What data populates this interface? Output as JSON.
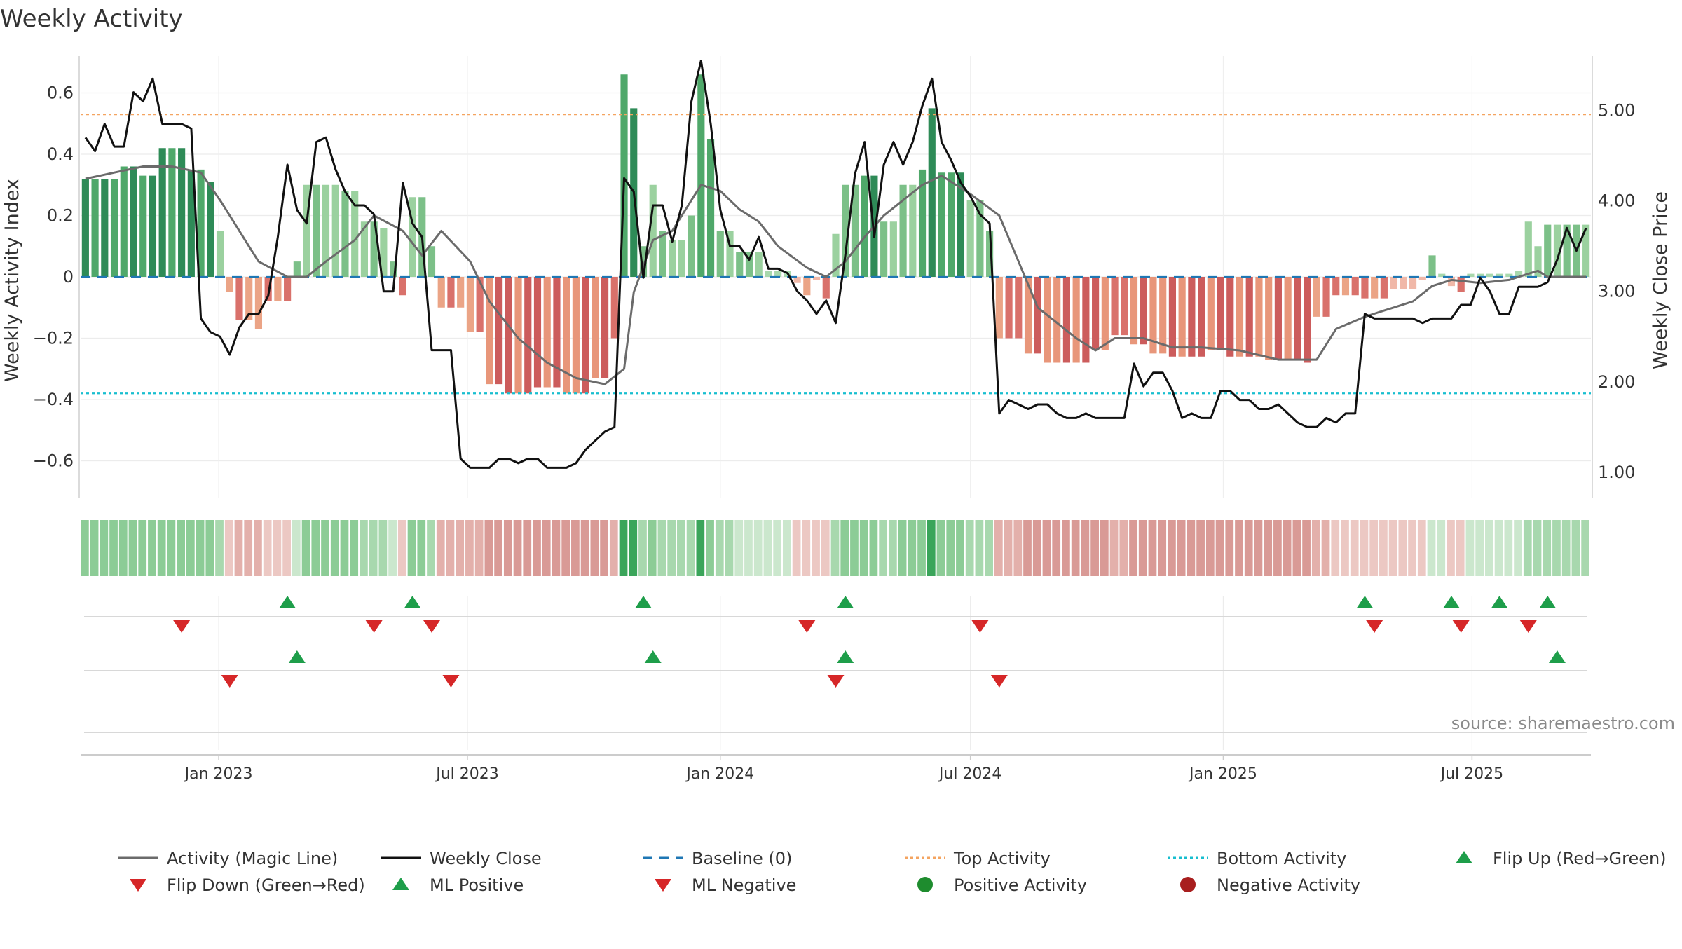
{
  "chart_data": {
    "type": "bar",
    "title": "Weekly Activity",
    "source": "source: sharemaestro.com",
    "left_axis": {
      "label": "Weekly Activity Index",
      "range": [
        -0.72,
        0.72
      ],
      "ticks": [
        0.6,
        0.4,
        0.2,
        0,
        -0.2,
        -0.4,
        -0.6
      ],
      "tick_labels": [
        "0.6",
        "0.4",
        "0.2",
        "0",
        "−0.2",
        "−0.4",
        "−0.6"
      ]
    },
    "right_axis": {
      "label": "Weekly Close Price",
      "range": [
        0.72,
        5.6
      ],
      "ticks": [
        5.0,
        4.0,
        3.0,
        2.0,
        1.0
      ],
      "tick_labels": [
        "5.00",
        "4.00",
        "3.00",
        "2.00",
        "1.00"
      ]
    },
    "x_axis": {
      "start": "2022-09-26",
      "end": "2025-09-22",
      "ticks": [
        "2023-01-01",
        "2023-07-01",
        "2024-01-01",
        "2024-07-01",
        "2025-01-01",
        "2025-07-01"
      ],
      "tick_labels": [
        "Jan 2023",
        "Jul 2023",
        "Jan 2024",
        "Jul 2024",
        "Jan 2025",
        "Jul 2025"
      ]
    },
    "top_activity": 0.53,
    "bottom_activity": -0.38,
    "baseline": 0,
    "activity_segments": [
      [
        0,
        0.32
      ],
      [
        4,
        0.36
      ],
      [
        6,
        0.33
      ],
      [
        8,
        0.42
      ],
      [
        11,
        0.35
      ],
      [
        13,
        0.31
      ],
      [
        14,
        0.15
      ],
      [
        15,
        -0.05
      ],
      [
        16,
        -0.14
      ],
      [
        18,
        -0.17
      ],
      [
        19,
        -0.08
      ],
      [
        22,
        0.05
      ],
      [
        23,
        0.3
      ],
      [
        27,
        0.28
      ],
      [
        29,
        0.18
      ],
      [
        31,
        0.16
      ],
      [
        32,
        0.05
      ],
      [
        33,
        -0.06
      ],
      [
        34,
        0.26
      ],
      [
        36,
        0.1
      ],
      [
        37,
        -0.1
      ],
      [
        40,
        -0.18
      ],
      [
        42,
        -0.35
      ],
      [
        44,
        -0.38
      ],
      [
        47,
        -0.36
      ],
      [
        50,
        -0.38
      ],
      [
        53,
        -0.33
      ],
      [
        55,
        -0.2
      ],
      [
        56,
        0.66
      ],
      [
        57,
        0.55
      ],
      [
        58,
        0.1
      ],
      [
        59,
        0.3
      ],
      [
        60,
        0.15
      ],
      [
        61,
        0.12
      ],
      [
        63,
        0.2
      ],
      [
        64,
        0.66
      ],
      [
        65,
        0.45
      ],
      [
        66,
        0.15
      ],
      [
        68,
        0.08
      ],
      [
        71,
        0.02
      ],
      [
        74,
        -0.02
      ],
      [
        75,
        -0.06
      ],
      [
        76,
        -0.01
      ],
      [
        77,
        -0.07
      ],
      [
        78,
        0.14
      ],
      [
        79,
        0.3
      ],
      [
        81,
        0.33
      ],
      [
        83,
        0.18
      ],
      [
        85,
        0.3
      ],
      [
        87,
        0.35
      ],
      [
        88,
        0.55
      ],
      [
        89,
        0.34
      ],
      [
        92,
        0.25
      ],
      [
        94,
        0.15
      ],
      [
        95,
        -0.2
      ],
      [
        98,
        -0.25
      ],
      [
        100,
        -0.28
      ],
      [
        103,
        -0.28
      ],
      [
        105,
        -0.24
      ],
      [
        107,
        -0.19
      ],
      [
        109,
        -0.22
      ],
      [
        111,
        -0.25
      ],
      [
        113,
        -0.26
      ],
      [
        115,
        -0.26
      ],
      [
        117,
        -0.24
      ],
      [
        119,
        -0.26
      ],
      [
        123,
        -0.27
      ],
      [
        127,
        -0.28
      ],
      [
        128,
        -0.13
      ],
      [
        130,
        -0.06
      ],
      [
        133,
        -0.07
      ],
      [
        136,
        -0.04
      ],
      [
        139,
        -0.01
      ],
      [
        140,
        0.07
      ],
      [
        141,
        0.01
      ],
      [
        142,
        -0.03
      ],
      [
        143,
        -0.05
      ],
      [
        144,
        0.01
      ],
      [
        146,
        0.01
      ],
      [
        149,
        0.02
      ],
      [
        150,
        0.18
      ],
      [
        151,
        0.1
      ],
      [
        152,
        0.17
      ]
    ],
    "magic_line_segments": [
      [
        0,
        0.32
      ],
      [
        3,
        0.34
      ],
      [
        6,
        0.36
      ],
      [
        9,
        0.36
      ],
      [
        12,
        0.34
      ],
      [
        14,
        0.25
      ],
      [
        16,
        0.15
      ],
      [
        18,
        0.05
      ],
      [
        21,
        0.0
      ],
      [
        23,
        0.0
      ],
      [
        25,
        0.05
      ],
      [
        28,
        0.12
      ],
      [
        30,
        0.2
      ],
      [
        33,
        0.15
      ],
      [
        35,
        0.07
      ],
      [
        37,
        0.15
      ],
      [
        40,
        0.05
      ],
      [
        42,
        -0.08
      ],
      [
        45,
        -0.2
      ],
      [
        48,
        -0.28
      ],
      [
        51,
        -0.33
      ],
      [
        54,
        -0.35
      ],
      [
        56,
        -0.3
      ],
      [
        57,
        -0.05
      ],
      [
        59,
        0.12
      ],
      [
        61,
        0.15
      ],
      [
        63,
        0.25
      ],
      [
        64,
        0.3
      ],
      [
        66,
        0.28
      ],
      [
        68,
        0.22
      ],
      [
        70,
        0.18
      ],
      [
        72,
        0.1
      ],
      [
        75,
        0.03
      ],
      [
        77,
        0.0
      ],
      [
        79,
        0.05
      ],
      [
        81,
        0.13
      ],
      [
        83,
        0.2
      ],
      [
        85,
        0.25
      ],
      [
        87,
        0.3
      ],
      [
        89,
        0.33
      ],
      [
        92,
        0.27
      ],
      [
        95,
        0.2
      ],
      [
        97,
        0.05
      ],
      [
        99,
        -0.1
      ],
      [
        101,
        -0.15
      ],
      [
        103,
        -0.2
      ],
      [
        105,
        -0.24
      ],
      [
        107,
        -0.2
      ],
      [
        110,
        -0.2
      ],
      [
        113,
        -0.23
      ],
      [
        116,
        -0.23
      ],
      [
        120,
        -0.24
      ],
      [
        124,
        -0.27
      ],
      [
        128,
        -0.27
      ],
      [
        130,
        -0.17
      ],
      [
        133,
        -0.13
      ],
      [
        136,
        -0.1
      ],
      [
        138,
        -0.08
      ],
      [
        140,
        -0.03
      ],
      [
        142,
        -0.01
      ],
      [
        145,
        -0.02
      ],
      [
        148,
        -0.01
      ],
      [
        151,
        0.02
      ],
      [
        152,
        0.0
      ]
    ],
    "weekly_close_segments": [
      [
        0,
        4.7
      ],
      [
        1,
        4.55
      ],
      [
        2,
        4.85
      ],
      [
        3,
        4.6
      ],
      [
        4,
        4.6
      ],
      [
        5,
        5.2
      ],
      [
        6,
        5.1
      ],
      [
        7,
        5.35
      ],
      [
        8,
        4.85
      ],
      [
        10,
        4.85
      ],
      [
        11,
        4.8
      ],
      [
        12,
        2.7
      ],
      [
        13,
        2.55
      ],
      [
        14,
        2.5
      ],
      [
        15,
        2.3
      ],
      [
        16,
        2.6
      ],
      [
        17,
        2.75
      ],
      [
        18,
        2.75
      ],
      [
        19,
        2.95
      ],
      [
        20,
        3.6
      ],
      [
        21,
        4.4
      ],
      [
        22,
        3.9
      ],
      [
        23,
        3.75
      ],
      [
        24,
        4.65
      ],
      [
        25,
        4.7
      ],
      [
        26,
        4.35
      ],
      [
        27,
        4.1
      ],
      [
        28,
        3.95
      ],
      [
        29,
        3.95
      ],
      [
        30,
        3.85
      ],
      [
        31,
        3.0
      ],
      [
        32,
        3.0
      ],
      [
        33,
        4.2
      ],
      [
        34,
        3.75
      ],
      [
        35,
        3.6
      ],
      [
        36,
        2.35
      ],
      [
        38,
        2.35
      ],
      [
        39,
        1.15
      ],
      [
        40,
        1.05
      ],
      [
        42,
        1.05
      ],
      [
        43,
        1.15
      ],
      [
        44,
        1.15
      ],
      [
        45,
        1.1
      ],
      [
        46,
        1.15
      ],
      [
        47,
        1.15
      ],
      [
        48,
        1.05
      ],
      [
        50,
        1.05
      ],
      [
        51,
        1.1
      ],
      [
        52,
        1.25
      ],
      [
        54,
        1.45
      ],
      [
        55,
        1.5
      ],
      [
        56,
        4.25
      ],
      [
        57,
        4.1
      ],
      [
        58,
        3.15
      ],
      [
        59,
        3.95
      ],
      [
        60,
        3.95
      ],
      [
        61,
        3.55
      ],
      [
        62,
        3.95
      ],
      [
        63,
        5.1
      ],
      [
        64,
        5.55
      ],
      [
        65,
        4.85
      ],
      [
        66,
        3.9
      ],
      [
        67,
        3.5
      ],
      [
        68,
        3.5
      ],
      [
        69,
        3.35
      ],
      [
        70,
        3.6
      ],
      [
        71,
        3.25
      ],
      [
        72,
        3.25
      ],
      [
        73,
        3.2
      ],
      [
        74,
        3.0
      ],
      [
        75,
        2.9
      ],
      [
        76,
        2.75
      ],
      [
        77,
        2.9
      ],
      [
        78,
        2.65
      ],
      [
        79,
        3.4
      ],
      [
        80,
        4.3
      ],
      [
        81,
        4.65
      ],
      [
        82,
        3.6
      ],
      [
        83,
        4.4
      ],
      [
        84,
        4.65
      ],
      [
        85,
        4.4
      ],
      [
        86,
        4.65
      ],
      [
        87,
        5.05
      ],
      [
        88,
        5.35
      ],
      [
        89,
        4.65
      ],
      [
        90,
        4.45
      ],
      [
        91,
        4.2
      ],
      [
        92,
        4.05
      ],
      [
        93,
        3.85
      ],
      [
        94,
        3.75
      ],
      [
        95,
        1.65
      ],
      [
        96,
        1.8
      ],
      [
        97,
        1.75
      ],
      [
        98,
        1.7
      ],
      [
        99,
        1.75
      ],
      [
        100,
        1.75
      ],
      [
        101,
        1.65
      ],
      [
        102,
        1.6
      ],
      [
        103,
        1.6
      ],
      [
        104,
        1.65
      ],
      [
        105,
        1.6
      ],
      [
        108,
        1.6
      ],
      [
        109,
        2.2
      ],
      [
        110,
        1.95
      ],
      [
        111,
        2.1
      ],
      [
        112,
        2.1
      ],
      [
        113,
        1.9
      ],
      [
        114,
        1.6
      ],
      [
        115,
        1.65
      ],
      [
        116,
        1.6
      ],
      [
        117,
        1.6
      ],
      [
        118,
        1.9
      ],
      [
        119,
        1.9
      ],
      [
        120,
        1.8
      ],
      [
        121,
        1.8
      ],
      [
        122,
        1.7
      ],
      [
        123,
        1.7
      ],
      [
        124,
        1.75
      ],
      [
        125,
        1.65
      ],
      [
        126,
        1.55
      ],
      [
        127,
        1.5
      ],
      [
        128,
        1.5
      ],
      [
        129,
        1.6
      ],
      [
        130,
        1.55
      ],
      [
        131,
        1.65
      ],
      [
        132,
        1.65
      ],
      [
        133,
        2.75
      ],
      [
        134,
        2.7
      ],
      [
        138,
        2.7
      ],
      [
        139,
        2.65
      ],
      [
        140,
        2.7
      ],
      [
        142,
        2.7
      ],
      [
        143,
        2.85
      ],
      [
        144,
        2.85
      ],
      [
        145,
        3.15
      ],
      [
        146,
        3.0
      ],
      [
        147,
        2.75
      ],
      [
        148,
        2.75
      ],
      [
        149,
        3.05
      ],
      [
        151,
        3.05
      ],
      [
        152,
        3.1
      ],
      [
        153,
        3.35
      ],
      [
        154,
        3.7
      ],
      [
        155,
        3.45
      ],
      [
        156,
        3.7
      ]
    ],
    "series": [
      {
        "name": "Activity (Magic Line)",
        "style": "line",
        "color": "#6b6b6b"
      },
      {
        "name": "Weekly Close",
        "style": "line",
        "color": "#111111"
      },
      {
        "name": "Baseline (0)",
        "style": "dashed",
        "color": "#1f77b4"
      },
      {
        "name": "Top Activity",
        "style": "dotted",
        "color": "#f4a460"
      },
      {
        "name": "Bottom Activity",
        "style": "dotted",
        "color": "#17becf"
      }
    ],
    "flip_up_dates": [
      "2023-02-20",
      "2023-05-22",
      "2023-11-06",
      "2024-04-01",
      "2025-04-14",
      "2025-06-16",
      "2025-07-21",
      "2025-08-25"
    ],
    "flip_down_dates": [
      "2022-12-05",
      "2023-04-24",
      "2023-06-05",
      "2024-03-04",
      "2024-07-08",
      "2025-04-21",
      "2025-06-23",
      "2025-08-11"
    ],
    "ml_positive_dates": [
      "2023-02-27",
      "2023-11-13",
      "2024-04-01",
      "2025-09-01"
    ],
    "ml_negative_dates": [
      "2023-01-09",
      "2023-06-19",
      "2024-03-25",
      "2024-07-22"
    ],
    "legend": [
      {
        "label": "Activity (Magic Line)",
        "marker": "solid-line",
        "color": "#6b6b6b"
      },
      {
        "label": "Weekly Close",
        "marker": "solid-line",
        "color": "#111111"
      },
      {
        "label": "Baseline (0)",
        "marker": "dashed-line",
        "color": "#1f77b4"
      },
      {
        "label": "Top Activity",
        "marker": "dotted-line",
        "color": "#f4a460"
      },
      {
        "label": "Bottom Activity",
        "marker": "dotted-line",
        "color": "#17becf"
      },
      {
        "label": "Flip Up (Red→Green)",
        "marker": "triangle-up",
        "color": "#1e9e4a"
      },
      {
        "label": "Flip Down (Green→Red)",
        "marker": "triangle-down",
        "color": "#d62728"
      },
      {
        "label": "ML Positive",
        "marker": "triangle-up",
        "color": "#1e9e4a"
      },
      {
        "label": "ML Negative",
        "marker": "triangle-down",
        "color": "#d62728"
      },
      {
        "label": "Positive Activity",
        "marker": "circle",
        "color": "#1e8c2e"
      },
      {
        "label": "Negative Activity",
        "marker": "circle",
        "color": "#a81e1e"
      }
    ]
  }
}
